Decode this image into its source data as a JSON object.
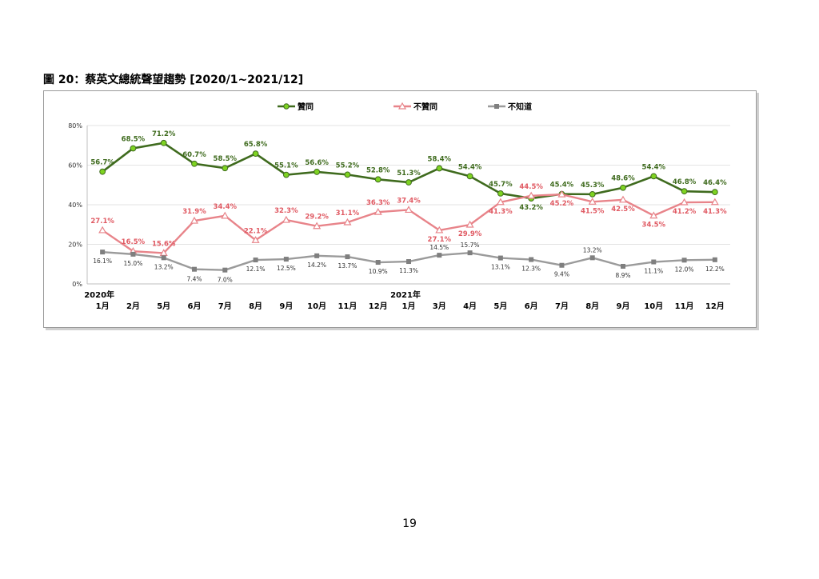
{
  "figure_title": "圖 20：蔡英文總統聲望趨勢 [2020/1~2021/12]",
  "page_number": "19",
  "colors": {
    "approve": "#3f6b1e",
    "approve_marker": "#7ed321",
    "disapprove": "#e8848a",
    "disapprove_label": "#e05a63",
    "unknown": "#9b9b9b",
    "unknown_marker": "#7f7f7f"
  },
  "chart_data": {
    "type": "line",
    "title": "",
    "xlabel": "",
    "ylabel": "",
    "ylim": [
      0,
      80
    ],
    "y_ticks": [
      "0%",
      "20%",
      "40%",
      "60%",
      "80%"
    ],
    "grid": true,
    "legend_position": "top",
    "categories": [
      {
        "line1": "2020年",
        "line2": "1月"
      },
      {
        "line1": "",
        "line2": "2月"
      },
      {
        "line1": "",
        "line2": "5月"
      },
      {
        "line1": "",
        "line2": "6月"
      },
      {
        "line1": "",
        "line2": "7月"
      },
      {
        "line1": "",
        "line2": "8月"
      },
      {
        "line1": "",
        "line2": "9月"
      },
      {
        "line1": "",
        "line2": "10月"
      },
      {
        "line1": "",
        "line2": "11月"
      },
      {
        "line1": "",
        "line2": "12月"
      },
      {
        "line1": "2021年",
        "line2": "1月"
      },
      {
        "line1": "",
        "line2": "3月"
      },
      {
        "line1": "",
        "line2": "4月"
      },
      {
        "line1": "",
        "line2": "5月"
      },
      {
        "line1": "",
        "line2": "6月"
      },
      {
        "line1": "",
        "line2": "7月"
      },
      {
        "line1": "",
        "line2": "8月"
      },
      {
        "line1": "",
        "line2": "9月"
      },
      {
        "line1": "",
        "line2": "10月"
      },
      {
        "line1": "",
        "line2": "11月"
      },
      {
        "line1": "",
        "line2": "12月"
      }
    ],
    "series": [
      {
        "name": "贊同",
        "values": [
          56.7,
          68.5,
          71.2,
          60.7,
          58.5,
          65.8,
          55.1,
          56.6,
          55.2,
          52.8,
          51.3,
          58.4,
          54.4,
          45.7,
          43.2,
          45.4,
          45.3,
          48.6,
          54.4,
          46.8,
          46.4
        ],
        "labels": [
          "56.7%",
          "68.5%",
          "71.2%",
          "60.7%",
          "58.5%",
          "65.8%",
          "55.1%",
          "56.6%",
          "55.2%",
          "52.8%",
          "51.3%",
          "58.4%",
          "54.4%",
          "45.7%",
          "43.2%",
          "45.4%",
          "45.3%",
          "48.6%",
          "54.4%",
          "46.8%",
          "46.4%"
        ]
      },
      {
        "name": "不贊同",
        "values": [
          27.1,
          16.5,
          15.6,
          31.9,
          34.4,
          22.1,
          32.3,
          29.2,
          31.1,
          36.3,
          37.4,
          27.1,
          29.9,
          41.3,
          44.5,
          45.2,
          41.5,
          42.5,
          34.5,
          41.2,
          41.3
        ],
        "labels": [
          "27.1%",
          "16.5%",
          "15.6%",
          "31.9%",
          "34.4%",
          "22.1%",
          "32.3%",
          "29.2%",
          "31.1%",
          "36.3%",
          "37.4%",
          "27.1%",
          "29.9%",
          "41.3%",
          "44.5%",
          "45.2%",
          "41.5%",
          "42.5%",
          "34.5%",
          "41.2%",
          "41.3%"
        ]
      },
      {
        "name": "不知道",
        "values": [
          16.1,
          15.0,
          13.2,
          7.4,
          7.0,
          12.1,
          12.5,
          14.2,
          13.7,
          10.9,
          11.3,
          14.5,
          15.7,
          13.1,
          12.3,
          9.4,
          13.2,
          8.9,
          11.1,
          12.0,
          12.2
        ],
        "labels": [
          "16.1%",
          "15.0%",
          "13.2%",
          "7.4%",
          "7.0%",
          "12.1%",
          "12.5%",
          "14.2%",
          "13.7%",
          "10.9%",
          "11.3%",
          "14.5%",
          "15.7%",
          "13.1%",
          "12.3%",
          "9.4%",
          "13.2%",
          "8.9%",
          "11.1%",
          "12.0%",
          "12.2%"
        ]
      }
    ]
  }
}
